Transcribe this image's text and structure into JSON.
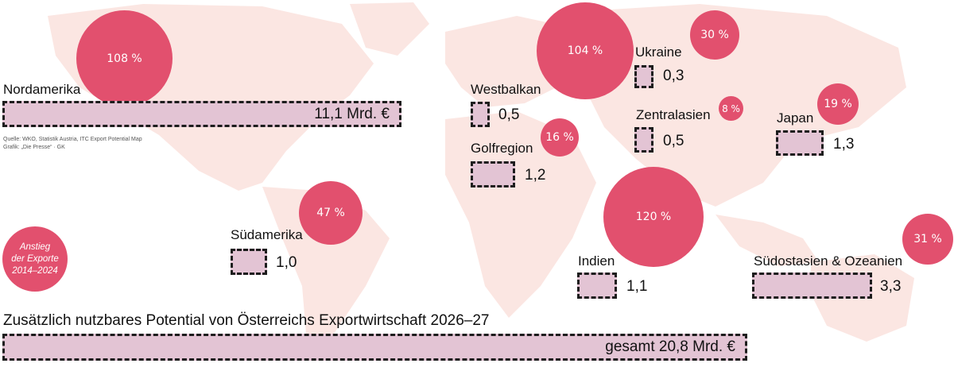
{
  "regions": {
    "nordamerika": {
      "name": "Nordamerika",
      "growth": "108 %",
      "value": "11,1 Mrd. €"
    },
    "westbalkan": {
      "name": "Westbalkan",
      "growth": "104 %",
      "value": "0,5"
    },
    "ukraine": {
      "name": "Ukraine",
      "growth": "30 %",
      "value": "0,3"
    },
    "zentralasien": {
      "name": "Zentralasien",
      "growth": "8 %",
      "value": "0,5"
    },
    "japan": {
      "name": "Japan",
      "growth": "19 %",
      "value": "1,3"
    },
    "golfregion": {
      "name": "Golfregion",
      "growth": "16 %",
      "value": "1,2"
    },
    "suedamerika": {
      "name": "Südamerika",
      "growth": "47 %",
      "value": "1,0"
    },
    "indien": {
      "name": "Indien",
      "growth": "120 %",
      "value": "1,1"
    },
    "suedostasien": {
      "name": "Südostasien & Ozeanien",
      "growth": "31 %",
      "value": "3,3"
    }
  },
  "source": {
    "line1": "Quelle: WKO, Statistik Austria, ITC Export Potential Map",
    "line2": "Grafik: „Die Presse“ · GK"
  },
  "legend": {
    "line1": "Anstieg",
    "line2": "der Exporte",
    "line3": "2014–2024"
  },
  "total": {
    "title": "Zusätzlich nutzbares Potential von Österreichs Exportwirtschaft 2026–27",
    "value": "gesamt 20,8 Mrd. €"
  },
  "colors": {
    "bubble": "#e2506e",
    "bar": "#e3c4d4",
    "map": "#fbe6e2"
  }
}
